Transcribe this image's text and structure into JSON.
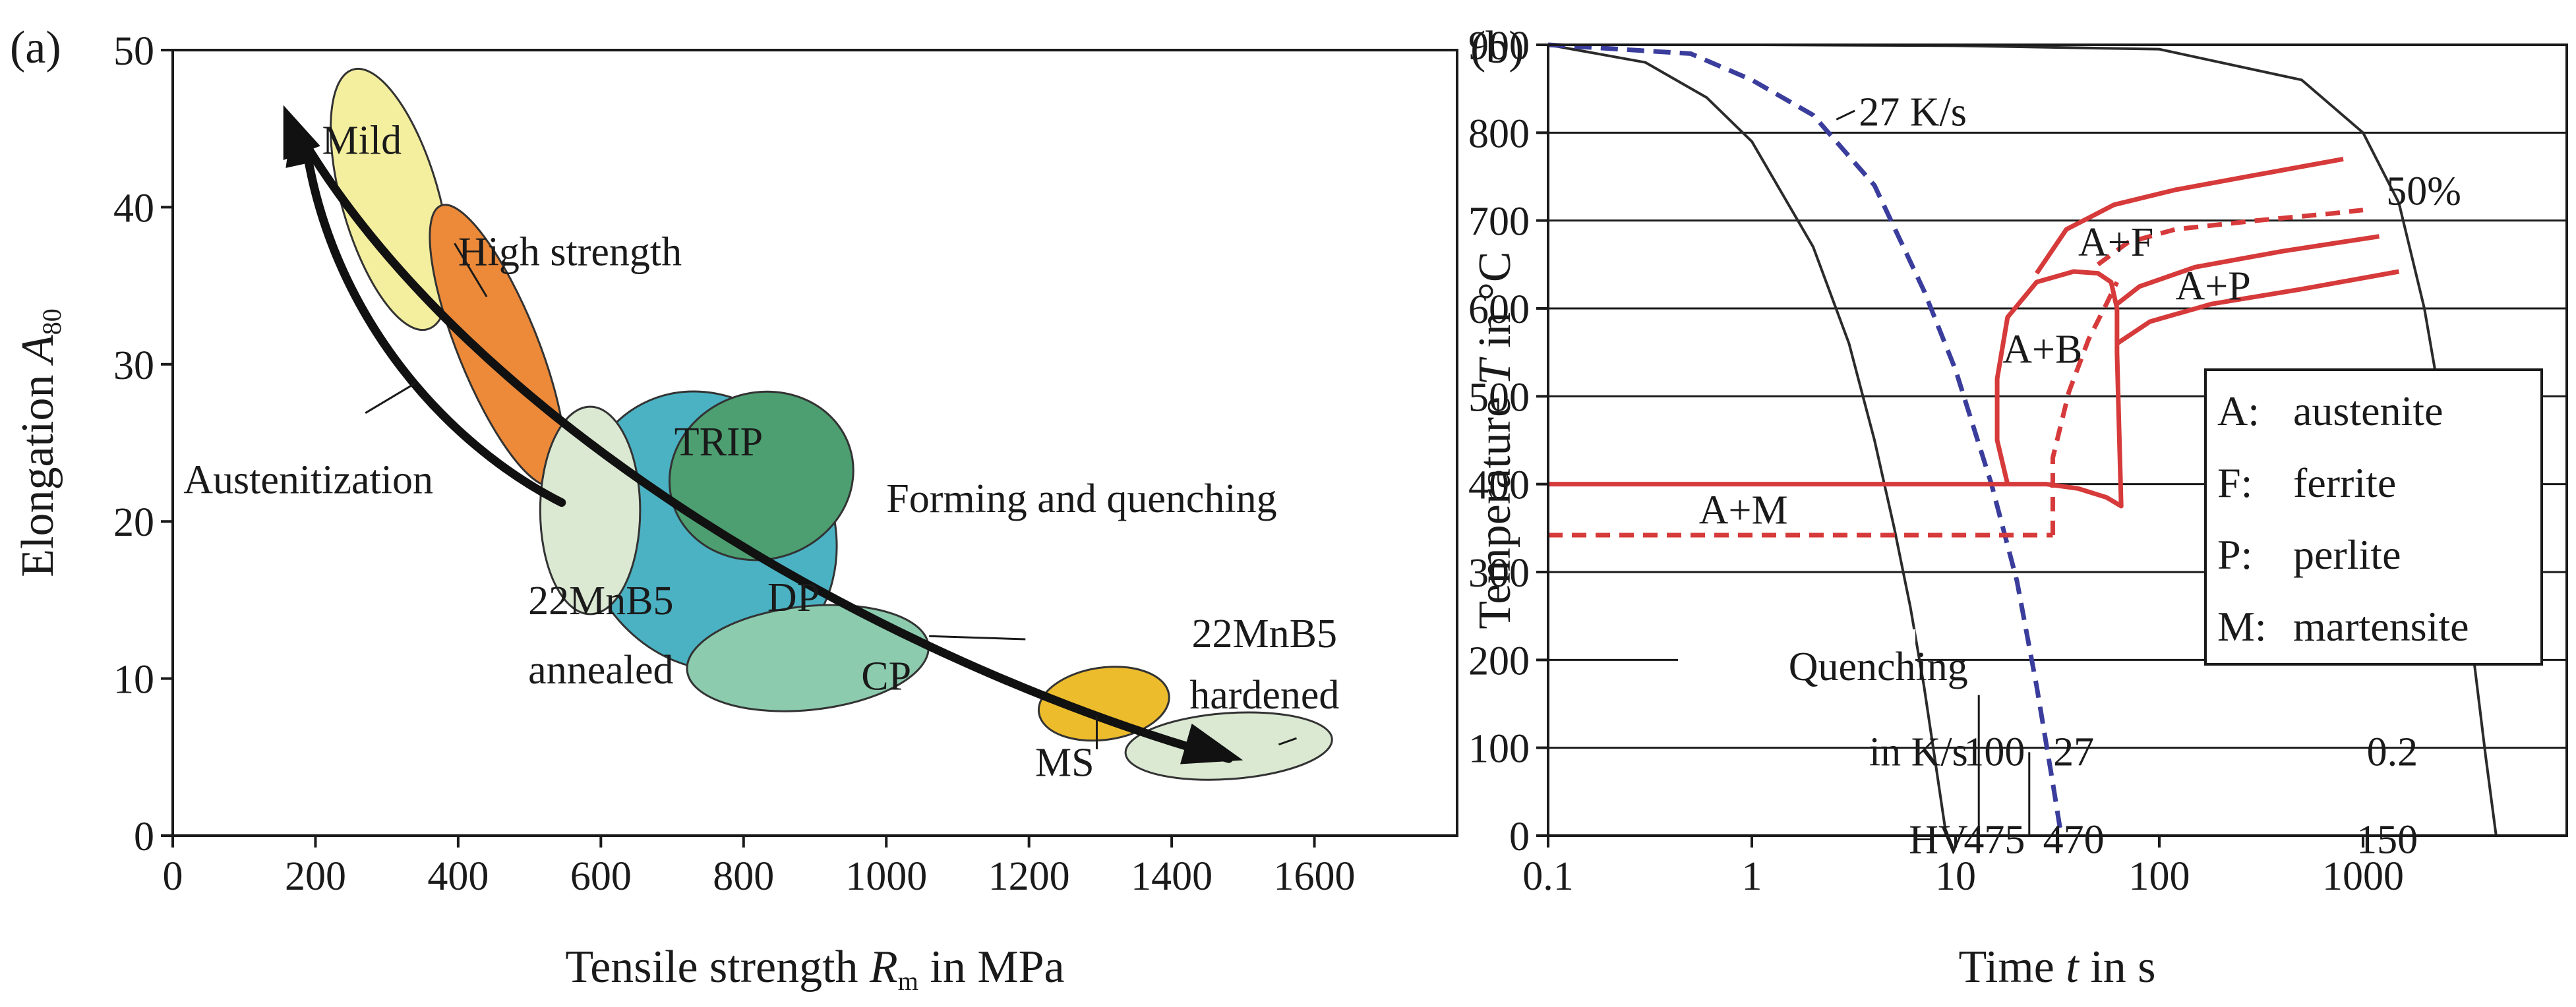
{
  "chart_data": [
    {
      "type": "scatter",
      "panel_label": "(a)",
      "xlabel_prefix": "Tensile strength ",
      "xlabel_symbol": "R",
      "xlabel_sub": "m",
      "xlabel_suffix": " in MPa",
      "ylabel_prefix": "Elongation ",
      "ylabel_symbol": "A",
      "ylabel_sub": "80",
      "xlim": [
        0,
        1800
      ],
      "ylim": [
        0,
        50
      ],
      "xticks": [
        0,
        200,
        400,
        600,
        800,
        1000,
        1200,
        1400,
        1600
      ],
      "yticks": [
        0,
        10,
        20,
        30,
        40,
        50
      ],
      "grid": false,
      "regions": [
        {
          "name": "Mild",
          "label": "Mild",
          "color": "#f4ef9e",
          "cx": 305,
          "cy": 40.5,
          "rx": 68,
          "ry": 8.6,
          "angle": -16,
          "lx": 265,
          "ly": 43.4
        },
        {
          "name": "High strength",
          "label": "",
          "color": "#ec8a3a",
          "cx": 455,
          "cy": 31.2,
          "rx": 56,
          "ry": 9.6,
          "angle": -22
        },
        {
          "name": "DP",
          "label": "DP",
          "color": "#4bb2c3",
          "cx": 750,
          "cy": 19.4,
          "rx": 175,
          "ry": 9.1,
          "angle": -27,
          "lx": 870,
          "ly": 14.3
        },
        {
          "name": "CP",
          "label": "CP",
          "color": "#8ccbae",
          "cx": 890,
          "cy": 11.3,
          "rx": 170,
          "ry": 3.3,
          "angle": -6,
          "lx": 1000,
          "ly": 9.3
        },
        {
          "name": "TRIP",
          "label": "TRIP",
          "color": "#4d9f71",
          "cx": 825,
          "cy": 22.9,
          "rx": 130,
          "ry": 5.3,
          "angle": -18,
          "lx": 765,
          "ly": 24.2
        },
        {
          "name": "22MnB5 annealed",
          "label": "",
          "color": "#dbe9d3",
          "cx": 585,
          "cy": 20.7,
          "rx": 70,
          "ry": 6.6,
          "angle": 0
        },
        {
          "name": "MS",
          "label": "",
          "color": "#edbc2c",
          "cx": 1305,
          "cy": 8.4,
          "rx": 92,
          "ry": 2.3,
          "angle": -8
        },
        {
          "name": "22MnB5 hardened",
          "label": "",
          "color": "#dbe9d3",
          "cx": 1480,
          "cy": 5.7,
          "rx": 145,
          "ry": 2.1,
          "angle": -4
        }
      ],
      "annotations": {
        "high_strength": "High strength",
        "austenitization": "Austenitization",
        "forming": "Forming and quenching",
        "annealed_1": "22MnB5",
        "annealed_2": "annealed",
        "hardened_1": "22MnB5",
        "hardened_2": "hardened",
        "ms": "MS"
      }
    },
    {
      "type": "line",
      "panel_label": "(b)",
      "xlabel_prefix": "Time ",
      "xlabel_symbol": "t",
      "xlabel_suffix": " in s",
      "ylabel_prefix": "Temperature ",
      "ylabel_symbol": "T",
      "ylabel_suffix": " in °C",
      "xscale": "log",
      "xlim": [
        0.1,
        10000
      ],
      "ylim": [
        0,
        900
      ],
      "xticks": [
        0.1,
        1,
        10,
        100,
        1000
      ],
      "xtick_labels": [
        "0.1",
        "1",
        "10",
        "100",
        "1000"
      ],
      "yticks": [
        0,
        100,
        200,
        300,
        400,
        500,
        600,
        700,
        800,
        900
      ],
      "grid": true,
      "cooling_curves": [
        {
          "name": "100 K/s",
          "style": "solid",
          "color": "#2b2b2b",
          "x": [
            0.1,
            0.3,
            0.6,
            1,
            2,
            3,
            4,
            5,
            6,
            7,
            8,
            9
          ],
          "y": [
            900,
            880,
            840,
            790,
            670,
            560,
            450,
            350,
            260,
            170,
            80,
            0
          ]
        },
        {
          "name": "27 K/s",
          "style": "dashed",
          "color": "#3a3d9c",
          "x": [
            0.1,
            0.5,
            1,
            2,
            4,
            7,
            10,
            15,
            20,
            25,
            30,
            33
          ],
          "y": [
            900,
            890,
            860,
            820,
            740,
            620,
            530,
            400,
            290,
            170,
            60,
            0
          ]
        },
        {
          "name": "0.2 K/s",
          "style": "solid",
          "color": "#2b2b2b",
          "x": [
            0.1,
            1,
            10,
            100,
            500,
            1000,
            1500,
            2000,
            2500,
            3000,
            3500,
            4000,
            4500
          ],
          "y": [
            900,
            900,
            899,
            895,
            860,
            800,
            720,
            600,
            470,
            330,
            200,
            90,
            0
          ]
        }
      ],
      "transformation_curves": [
        {
          "name": "A+M solid",
          "style": "solid",
          "color": "#d63a3a",
          "x": [
            0.1,
            18
          ],
          "y": [
            400,
            400
          ]
        },
        {
          "name": "A+M dashed",
          "style": "dashed",
          "color": "#d63a3a",
          "x": [
            0.1,
            30
          ],
          "y": [
            342,
            342
          ]
        },
        {
          "name": "bainite solid",
          "style": "solid",
          "color": "#d63a3a",
          "x": [
            18,
            16,
            16,
            18,
            25,
            38,
            50,
            58,
            62,
            62,
            65,
            55,
            40,
            28,
            20,
            18
          ],
          "y": [
            400,
            450,
            520,
            590,
            630,
            642,
            640,
            630,
            600,
            550,
            375,
            385,
            395,
            400,
            400,
            400
          ]
        },
        {
          "name": "bainite dashed",
          "style": "dashed",
          "color": "#d63a3a",
          "x": [
            30,
            30,
            36,
            45,
            55,
            62
          ],
          "y": [
            342,
            430,
            505,
            565,
            605,
            630
          ]
        },
        {
          "name": "A+F upper",
          "style": "solid",
          "color": "#d63a3a",
          "x": [
            25,
            35,
            60,
            120,
            300,
            800
          ],
          "y": [
            640,
            690,
            718,
            735,
            752,
            770
          ]
        },
        {
          "name": "50% dashed",
          "style": "dashed",
          "color": "#d63a3a",
          "x": [
            50,
            70,
            120,
            300,
            700,
            1000
          ],
          "y": [
            650,
            675,
            690,
            700,
            708,
            712
          ]
        },
        {
          "name": "A+P mid",
          "style": "solid",
          "color": "#d63a3a",
          "x": [
            62,
            80,
            150,
            400,
            1200
          ],
          "y": [
            605,
            625,
            647,
            665,
            682
          ]
        },
        {
          "name": "A+P lower",
          "style": "solid",
          "color": "#d63a3a",
          "x": [
            62,
            90,
            180,
            500,
            1500
          ],
          "y": [
            560,
            585,
            605,
            622,
            642
          ]
        }
      ],
      "phase_labels": {
        "a_m": "A+M",
        "a_b": "A+B",
        "a_f": "A+F",
        "a_p": "A+P",
        "pct": "50%",
        "rate": "27 K/s"
      },
      "legend": [
        {
          "key": "A:",
          "value": "austenite"
        },
        {
          "key": "F:",
          "value": "ferrite"
        },
        {
          "key": "P:",
          "value": "perlite"
        },
        {
          "key": "M:",
          "value": "martensite"
        }
      ],
      "legend_position": "right",
      "quench_table": {
        "title": "Quenching",
        "row1_label": "in K/s",
        "row2_label": "HV",
        "rates": [
          "100",
          "27",
          "0.2"
        ],
        "hardness": [
          "475",
          "470",
          "150"
        ]
      }
    }
  ]
}
